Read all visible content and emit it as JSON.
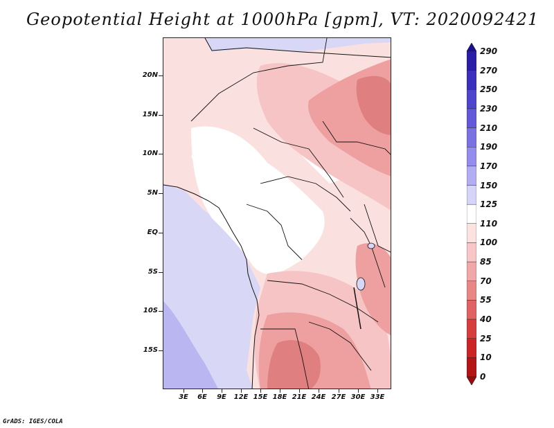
{
  "title": "Geopotential Height at 1000hPa [gpm], VT: 2020092421",
  "footer": "GrADS: IGES/COLA",
  "map": {
    "lat_labels": [
      "20N",
      "15N",
      "10N",
      "5N",
      "EQ",
      "5S",
      "10S",
      "15S"
    ],
    "lon_labels": [
      "3E",
      "6E",
      "9E",
      "12E",
      "15E",
      "18E",
      "21E",
      "24E",
      "27E",
      "30E",
      "33E"
    ]
  },
  "colorbar": {
    "labels": [
      "290",
      "270",
      "250",
      "230",
      "210",
      "190",
      "170",
      "150",
      "125",
      "110",
      "100",
      "85",
      "70",
      "55",
      "40",
      "25",
      "10",
      "0"
    ],
    "colors": [
      "#1c0f8c",
      "#2a1ea8",
      "#3a30bd",
      "#4d46cc",
      "#6258d8",
      "#7a72e3",
      "#958ded",
      "#b3aef3",
      "#d6d4f8",
      "#ffffff",
      "#fde2e2",
      "#f8c6c6",
      "#f1a8a8",
      "#e98787",
      "#e06262",
      "#d83d3d",
      "#cc2424",
      "#b41414",
      "#9a0c0c"
    ]
  },
  "colors": {
    "background": "#ffffff",
    "ocean": "#d8d8f6",
    "ocean_deep": "#b9b6f1",
    "low_pink": "#fbe0e0",
    "mid_pink": "#f6c4c4",
    "high_red": "#ee9f9f",
    "peak_red": "#e07f7f"
  }
}
